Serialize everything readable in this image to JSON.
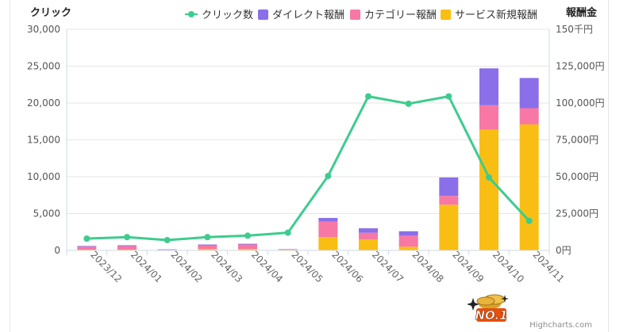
{
  "chart_data": {
    "type": "bar",
    "stacked": true,
    "left_axis_title": "クリック",
    "right_axis_title": "報酬金",
    "categories": [
      "2023/12",
      "2024/01",
      "2024/02",
      "2024/03",
      "2024/04",
      "2024/05",
      "2024/06",
      "2024/07",
      "2024/08",
      "2024/09",
      "2024/10",
      "2024/11"
    ],
    "left_axis": {
      "range": [
        0,
        30000
      ],
      "ticks": [
        "0",
        "5,000",
        "10,000",
        "15,000",
        "20,000",
        "25,000",
        "30,000"
      ]
    },
    "right_axis": {
      "range": [
        0,
        150000
      ],
      "ticks": [
        "0円",
        "25,000円",
        "50,000円",
        "75,000円",
        "100,000円",
        "125,000円",
        "150千円"
      ]
    },
    "legend": {
      "position": "top-right",
      "items": [
        "クリック数",
        "ダイレクト報酬",
        "カテゴリー報酬",
        "サービス新規報酬"
      ]
    },
    "line_series": {
      "name": "クリック数",
      "color": "#3dcc8e",
      "values": [
        1600,
        1800,
        1400,
        1800,
        2000,
        2400,
        10100,
        20900,
        19900,
        20900,
        9900,
        4000
      ]
    },
    "bar_series": [
      {
        "name": "サービス新規報酬",
        "color": "#f9be13",
        "values": [
          500,
          500,
          200,
          1000,
          1000,
          500,
          9000,
          7500,
          2500,
          31000,
          82000,
          85500
        ]
      },
      {
        "name": "カテゴリー報酬",
        "color": "#f778a4",
        "values": [
          2000,
          2500,
          200,
          2500,
          3000,
          200,
          10500,
          4500,
          7500,
          6000,
          16500,
          11000
        ]
      },
      {
        "name": "ダイレクト報酬",
        "color": "#8a6fe8",
        "values": [
          500,
          500,
          300,
          500,
          500,
          100,
          2500,
          3000,
          3000,
          12500,
          25000,
          20500
        ]
      }
    ],
    "grid": true
  },
  "credits": "Highcharts.com",
  "badge_text": "NO.1"
}
